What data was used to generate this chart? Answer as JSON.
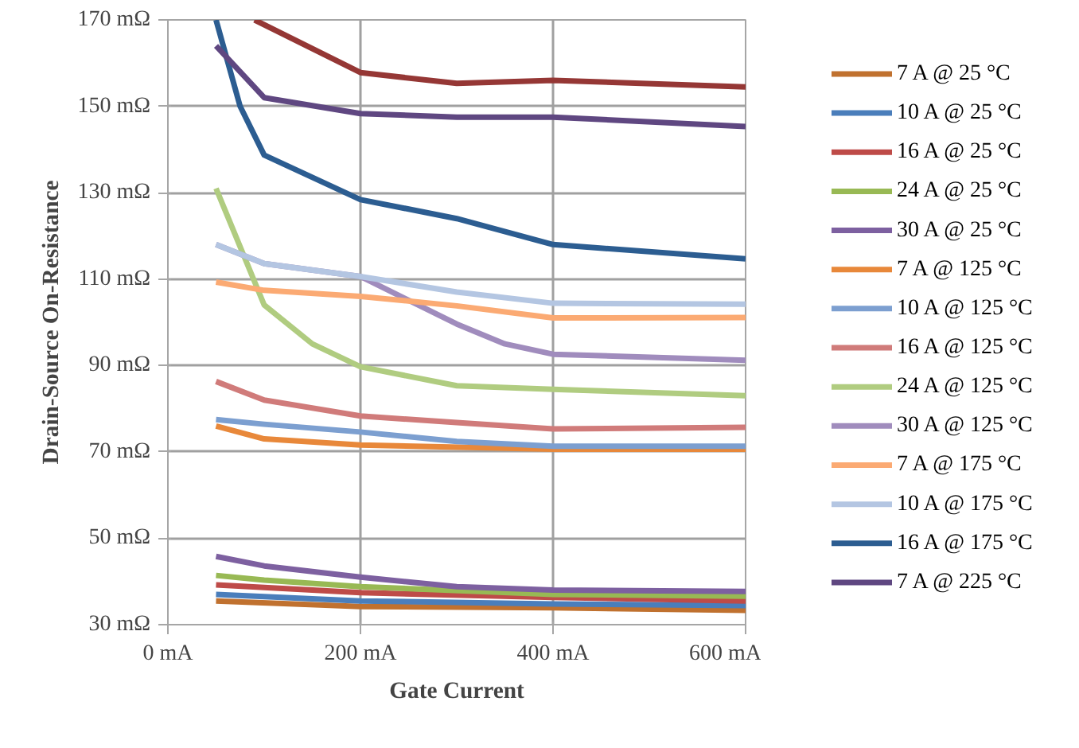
{
  "chart_data": {
    "type": "line",
    "xlabel": "Gate Current",
    "ylabel": "Drain-Source On-Resistance",
    "xlim": [
      0,
      600
    ],
    "xticks": [
      {
        "value": 0,
        "label": "0 mA"
      },
      {
        "value": 200,
        "label": "200 mA"
      },
      {
        "value": 400,
        "label": "400 mA"
      },
      {
        "value": 600,
        "label": "600 mA"
      }
    ],
    "ylim": [
      30,
      170
    ],
    "yticks": [
      {
        "value": 30,
        "label": "30 mΩ"
      },
      {
        "value": 50,
        "label": "50 mΩ"
      },
      {
        "value": 70,
        "label": "70 mΩ"
      },
      {
        "value": 90,
        "label": "90 mΩ"
      },
      {
        "value": 110,
        "label": "110 mΩ"
      },
      {
        "value": 130,
        "label": "130 mΩ"
      },
      {
        "value": 150,
        "label": "150 mΩ"
      },
      {
        "value": 170,
        "label": "170 mΩ"
      }
    ],
    "grid": true,
    "legend": "right",
    "marker": "none",
    "line_style": "solid",
    "series": [
      {
        "name": "7 A @ 25 °C",
        "color": "#c0712f",
        "x": [
          50,
          200,
          400,
          600
        ],
        "values": [
          35.5,
          34.2,
          33.9,
          33.3
        ]
      },
      {
        "name": "10 A @ 25 °C",
        "color": "#4a7ebb",
        "x": [
          50,
          200,
          400,
          600
        ],
        "values": [
          37,
          35.5,
          34.8,
          34.4
        ]
      },
      {
        "name": "16 A @ 25 °C",
        "color": "#be4b48",
        "x": [
          50,
          200,
          400,
          600
        ],
        "values": [
          39.2,
          37.4,
          36.3,
          35.5
        ]
      },
      {
        "name": "24 A @ 25 °C",
        "color": "#98b954",
        "x": [
          50,
          100,
          200,
          400,
          600
        ],
        "values": [
          41.4,
          40.3,
          38.8,
          37,
          36.6
        ]
      },
      {
        "name": "30 A @ 25 °C",
        "color": "#7d60a0",
        "x": [
          50,
          100,
          200,
          300,
          400,
          600
        ],
        "values": [
          45.8,
          43.6,
          41,
          38.8,
          38,
          37.7
        ]
      },
      {
        "name": "7 A @ 125 °C",
        "color": "#e8883a",
        "x": [
          50,
          100,
          200,
          400,
          600
        ],
        "values": [
          76,
          73,
          71.6,
          70.6,
          70.6
        ]
      },
      {
        "name": "10 A @ 125 °C",
        "color": "#7c9fd0",
        "x": [
          50,
          100,
          200,
          300,
          400,
          600
        ],
        "values": [
          77.5,
          76.4,
          74.6,
          72.4,
          71.3,
          71.3
        ]
      },
      {
        "name": "16 A @ 125 °C",
        "color": "#d07b7a",
        "x": [
          50,
          100,
          200,
          300,
          400,
          600
        ],
        "values": [
          86.3,
          82,
          78.3,
          76.8,
          75.3,
          75.7
        ]
      },
      {
        "name": "24 A @ 125 °C",
        "color": "#b0cc80",
        "x": [
          50,
          100,
          150,
          200,
          300,
          400,
          600
        ],
        "values": [
          131,
          104,
          95,
          89.7,
          85.3,
          84.5,
          83
        ]
      },
      {
        "name": "30 A @ 125 °C",
        "color": "#a08cbd",
        "x": [
          50,
          100,
          200,
          300,
          350,
          400,
          600
        ],
        "values": [
          118,
          113.6,
          110.6,
          99.6,
          95,
          92.6,
          91.2
        ]
      },
      {
        "name": "7 A @ 175 °C",
        "color": "#fbaa73",
        "x": [
          50,
          100,
          200,
          300,
          400,
          600
        ],
        "values": [
          109.3,
          107.4,
          106,
          103.8,
          101,
          101.1
        ]
      },
      {
        "name": "10 A @ 175 °C",
        "color": "#b4c6e2",
        "x": [
          50,
          100,
          200,
          300,
          400,
          600
        ],
        "values": [
          118,
          113.6,
          110.6,
          107,
          104.4,
          104.2
        ]
      },
      {
        "name": "16 A @ 175 °C",
        "color": "#2c5d91",
        "x": [
          50,
          75,
          100,
          200,
          300,
          400,
          600
        ],
        "values": [
          170,
          150,
          138.7,
          128.4,
          124,
          118,
          114.7
        ]
      },
      {
        "name": "7 A @ 225 °C",
        "color": "#5f4781",
        "x": [
          50,
          100,
          200,
          300,
          400,
          600
        ],
        "values": [
          164,
          152,
          148.3,
          147.5,
          147.5,
          145.3
        ]
      },
      {
        "color": "#953735",
        "x": [
          90,
          200,
          300,
          400,
          600
        ],
        "values": [
          170,
          157.8,
          155.3,
          156,
          154.5
        ]
      }
    ]
  }
}
